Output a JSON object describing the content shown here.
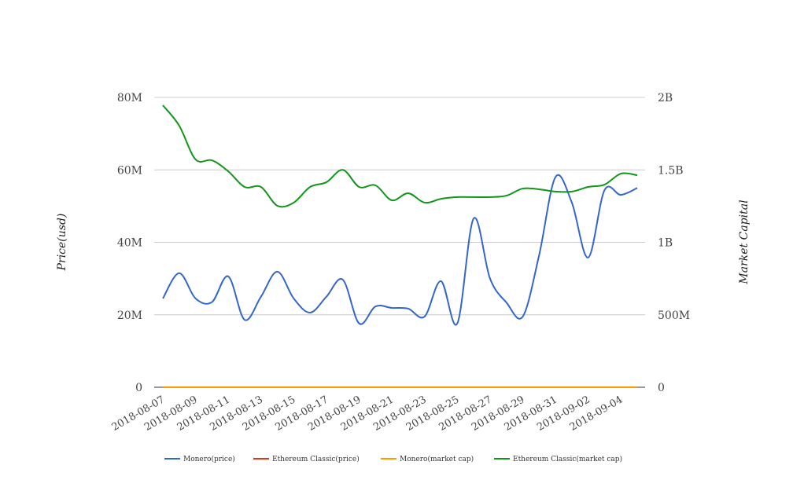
{
  "chart_data": {
    "type": "line",
    "title": "",
    "ylabel": "Price(usd)",
    "y2label": "Market Capital",
    "ylim": [
      0,
      80000000
    ],
    "y2lim": [
      0,
      2000000000
    ],
    "yticks": [
      {
        "v": 0,
        "label": "0"
      },
      {
        "v": 20000000,
        "label": "20M"
      },
      {
        "v": 40000000,
        "label": "40M"
      },
      {
        "v": 60000000,
        "label": "60M"
      },
      {
        "v": 80000000,
        "label": "80M"
      }
    ],
    "y2ticks": [
      {
        "v": 0,
        "label": "0"
      },
      {
        "v": 500000000,
        "label": "500M"
      },
      {
        "v": 1000000000,
        "label": "1B"
      },
      {
        "v": 1500000000,
        "label": "1.5B"
      },
      {
        "v": 2000000000,
        "label": "2B"
      }
    ],
    "grid": true,
    "legend_position": "bottom",
    "x": [
      "2018-08-07",
      "2018-08-08",
      "2018-08-09",
      "2018-08-10",
      "2018-08-11",
      "2018-08-12",
      "2018-08-13",
      "2018-08-14",
      "2018-08-15",
      "2018-08-16",
      "2018-08-17",
      "2018-08-18",
      "2018-08-19",
      "2018-08-20",
      "2018-08-21",
      "2018-08-22",
      "2018-08-23",
      "2018-08-24",
      "2018-08-25",
      "2018-08-26",
      "2018-08-27",
      "2018-08-28",
      "2018-08-29",
      "2018-08-30",
      "2018-08-31",
      "2018-09-01",
      "2018-09-02",
      "2018-09-03",
      "2018-09-04",
      "2018-09-05"
    ],
    "xtick_labels": [
      "2018-08-07",
      "2018-08-09",
      "2018-08-11",
      "2018-08-13",
      "2018-08-15",
      "2018-08-17",
      "2018-08-19",
      "2018-08-21",
      "2018-08-23",
      "2018-08-25",
      "2018-08-27",
      "2018-08-29",
      "2018-08-31",
      "2018-09-02",
      "2018-09-04"
    ],
    "series": [
      {
        "name": "Monero(price)",
        "axis": "left",
        "color": "#3366cc",
        "values": [
          24.5,
          31.5,
          24.5,
          23.5,
          30.6,
          18.6,
          25,
          31.9,
          24.5,
          20.6,
          25,
          29.7,
          17.6,
          22.3,
          21.9,
          21.7,
          19.5,
          29.3,
          17.6,
          46.6,
          30,
          23.4,
          19.5,
          36.4,
          58,
          51,
          35.8,
          54.4,
          53.1,
          55
        ],
        "unit": "M"
      },
      {
        "name": "Ethereum Classic(price)",
        "axis": "left",
        "color": "#dc3912",
        "values": [
          0,
          0,
          0,
          0,
          0,
          0,
          0,
          0,
          0,
          0,
          0,
          0,
          0,
          0,
          0,
          0,
          0,
          0,
          0,
          0,
          0,
          0,
          0,
          0,
          0,
          0,
          0,
          0,
          0,
          0
        ],
        "unit": "M"
      },
      {
        "name": "Monero(market cap)",
        "axis": "right",
        "color": "#ff9900",
        "values": [
          0,
          0,
          0,
          0,
          0,
          0,
          0,
          0,
          0,
          0,
          0,
          0,
          0,
          0,
          0,
          0,
          0,
          0,
          0,
          0,
          0,
          0,
          0,
          0,
          0,
          0,
          0,
          0,
          0,
          0
        ],
        "unit": "B"
      },
      {
        "name": "Ethereum Classic(market cap)",
        "axis": "right",
        "color": "#109618",
        "values": [
          1.946,
          1.805,
          1.572,
          1.566,
          1.49,
          1.382,
          1.382,
          1.252,
          1.274,
          1.382,
          1.415,
          1.5,
          1.382,
          1.393,
          1.29,
          1.339,
          1.274,
          1.3,
          1.312,
          1.312,
          1.312,
          1.322,
          1.371,
          1.366,
          1.35,
          1.35,
          1.382,
          1.398,
          1.474,
          1.463
        ],
        "unit": "B"
      }
    ]
  }
}
